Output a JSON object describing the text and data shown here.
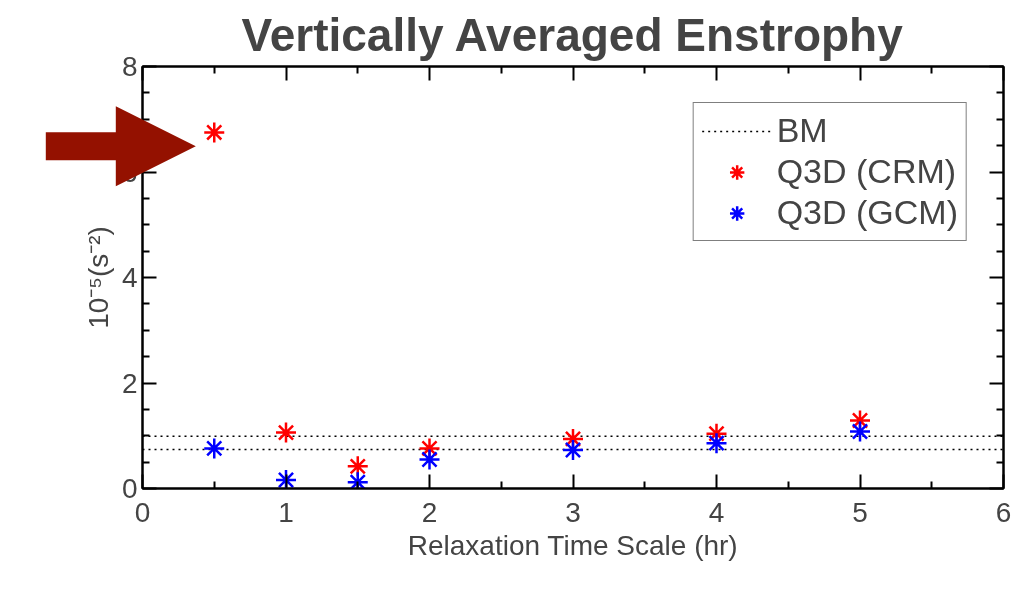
{
  "chart_data": {
    "type": "scatter",
    "title": "Vertically Averaged Enstrophy",
    "xlabel": "Relaxation Time Scale (hr)",
    "ylabel": "10⁻⁵(s⁻²)",
    "xlim": [
      0,
      6
    ],
    "ylim": [
      0,
      8
    ],
    "xticks": [
      0,
      1,
      2,
      3,
      4,
      5,
      6
    ],
    "yticks": [
      0,
      2,
      4,
      6,
      8
    ],
    "marker": "cross",
    "legend": "top right",
    "grid": false,
    "ref_lines": [
      {
        "axis": "y",
        "value": 0.99,
        "label": "BM",
        "color": "#000000",
        "line_style": "dotted"
      },
      {
        "axis": "y",
        "value": 0.74,
        "color": "#000000",
        "line_style": "dotted"
      }
    ],
    "series": [
      {
        "name": "Q3D (CRM)",
        "color": "#ff0000",
        "x": [
          0.5,
          1,
          1.5,
          2,
          3,
          4,
          5
        ],
        "values": [
          6.75,
          1.06,
          0.42,
          0.76,
          0.94,
          1.04,
          1.29
        ]
      },
      {
        "name": "Q3D (GCM)",
        "color": "#0000ff",
        "x": [
          0.5,
          1,
          1.5,
          2,
          3,
          4,
          5
        ],
        "values": [
          0.76,
          0.16,
          0.12,
          0.55,
          0.73,
          0.86,
          1.08
        ]
      }
    ]
  }
}
